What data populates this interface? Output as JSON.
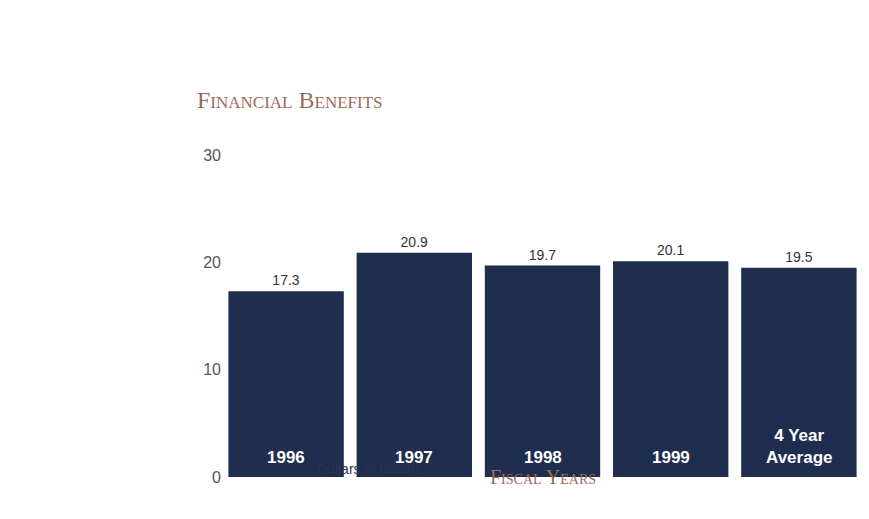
{
  "chart_data": {
    "type": "bar",
    "title": "Financial Benefits",
    "y_label": "Dollars in billions",
    "x_label": "Fiscal Years",
    "categories": [
      "1996",
      "1997",
      "1998",
      "1999",
      "4 Year Average"
    ],
    "values": [
      17.3,
      20.9,
      19.7,
      20.1,
      19.5
    ],
    "color": "#1f2d4f",
    "ylim": [
      0,
      30
    ],
    "yticks": [
      0,
      10,
      20,
      30
    ],
    "grid": false,
    "data_labels": true,
    "tick_labels": "y"
  }
}
